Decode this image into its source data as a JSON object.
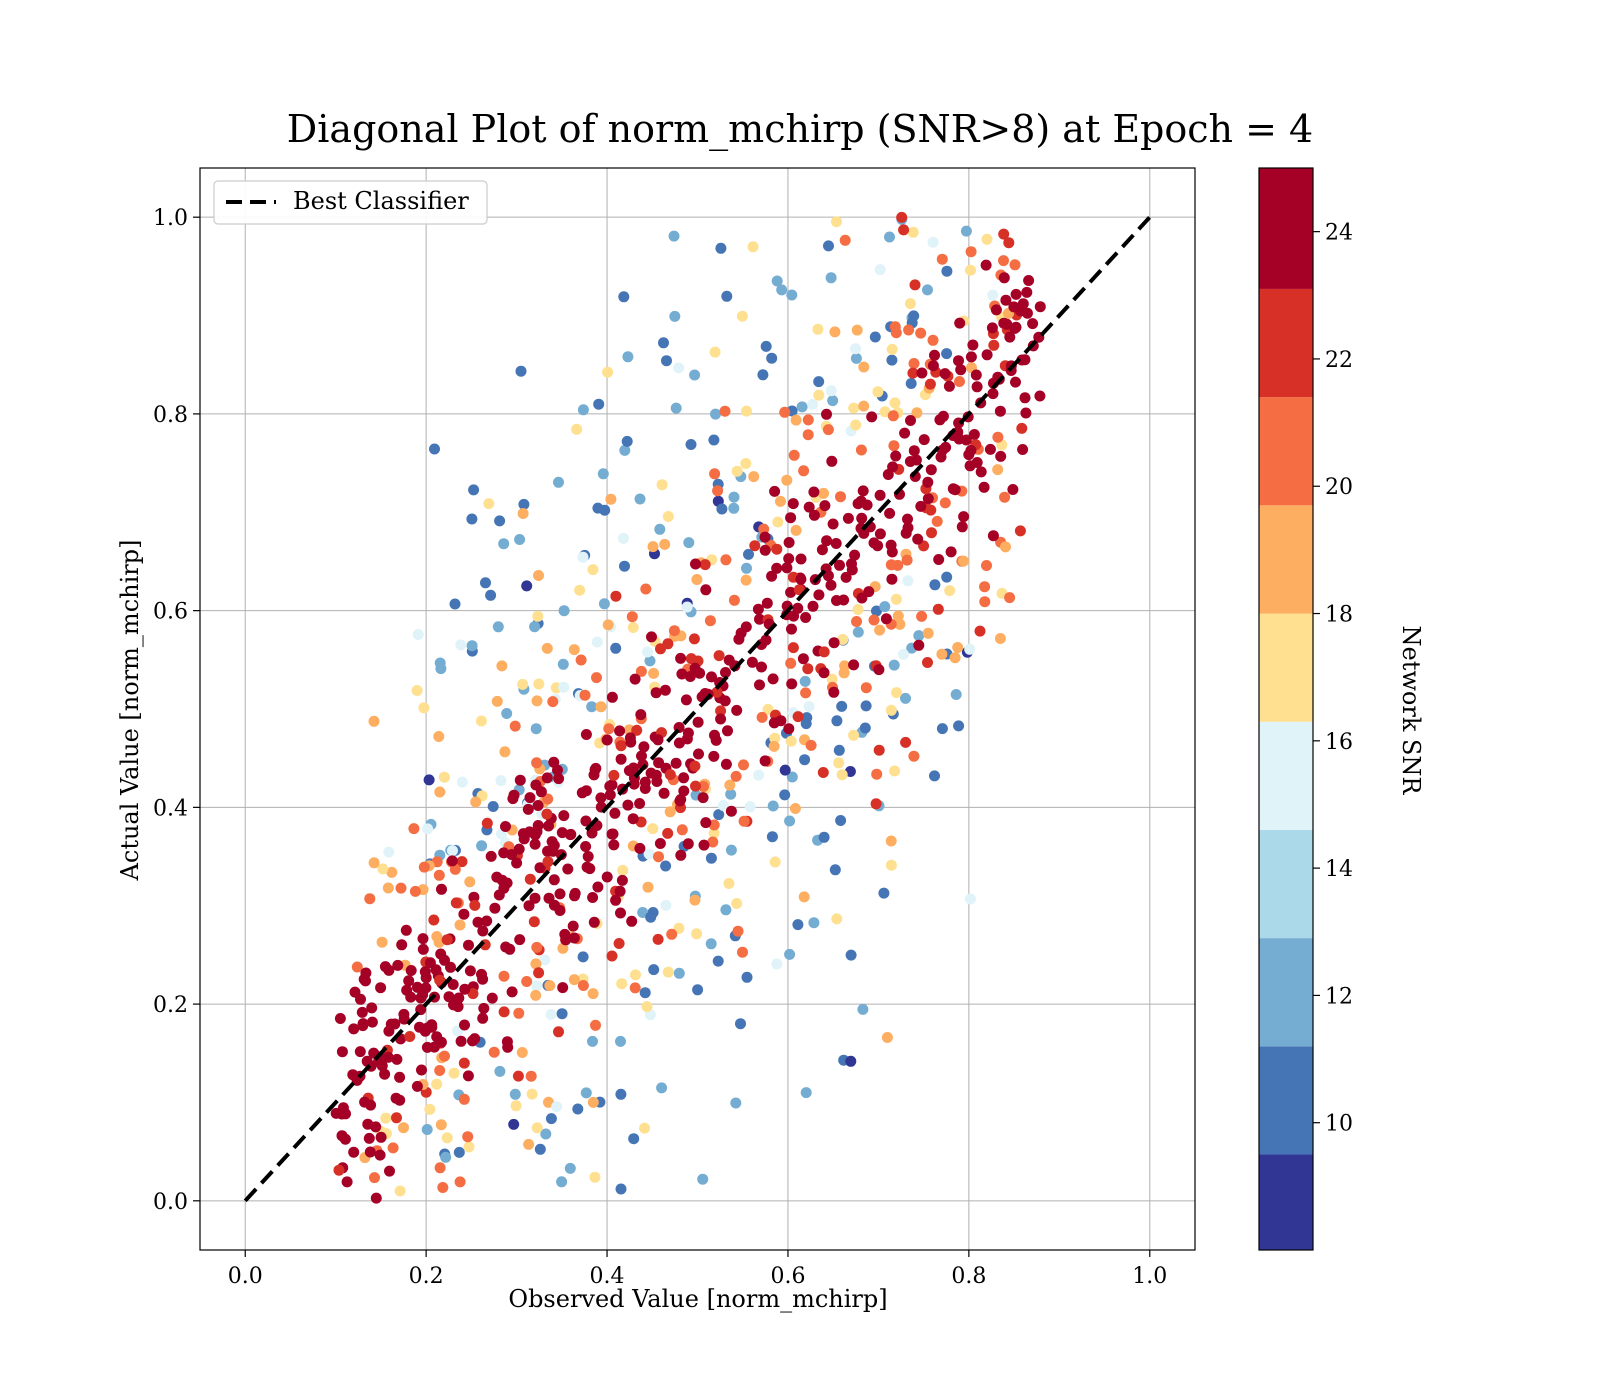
{
  "chart_data": {
    "type": "scatter",
    "title": "Diagonal Plot of norm_mchirp (SNR>8) at Epoch = 4",
    "xlabel": "Observed Value [norm_mchirp]",
    "ylabel": "Actual Value [norm_mchirp]",
    "xlim": [
      -0.05,
      1.05
    ],
    "ylim": [
      -0.05,
      1.05
    ],
    "xticks": [
      0.0,
      0.2,
      0.4,
      0.6,
      0.8,
      1.0
    ],
    "yticks": [
      0.0,
      0.2,
      0.4,
      0.6,
      0.8,
      1.0
    ],
    "xtick_labels": [
      "0.0",
      "0.2",
      "0.4",
      "0.6",
      "0.8",
      "1.0"
    ],
    "ytick_labels": [
      "0.0",
      "0.2",
      "0.4",
      "0.6",
      "0.8",
      "1.0"
    ],
    "grid": true,
    "legend": {
      "position": "top-left",
      "entries": [
        {
          "label": "Best Classifier",
          "style": "dashed",
          "color": "#000000"
        }
      ]
    },
    "reference_line": {
      "name": "Best Classifier",
      "x": [
        0.0,
        1.0
      ],
      "y": [
        0.0,
        1.0
      ]
    },
    "colorbar": {
      "label": "Network SNR",
      "range": [
        8,
        25
      ],
      "ticks": [
        10,
        12,
        14,
        16,
        18,
        20,
        22,
        24
      ],
      "tick_labels": [
        "10",
        "12",
        "14",
        "16",
        "18",
        "20",
        "22",
        "24"
      ],
      "bins": [
        {
          "from": 8,
          "to": 9.5,
          "color": "#313695"
        },
        {
          "from": 9.5,
          "to": 11.2,
          "color": "#4575b4"
        },
        {
          "from": 11.2,
          "to": 12.9,
          "color": "#74add1"
        },
        {
          "from": 12.9,
          "to": 14.6,
          "color": "#abd9e9"
        },
        {
          "from": 14.6,
          "to": 16.3,
          "color": "#e0f3f8"
        },
        {
          "from": 16.3,
          "to": 18.0,
          "color": "#fee090"
        },
        {
          "from": 18.0,
          "to": 19.7,
          "color": "#fdae61"
        },
        {
          "from": 19.7,
          "to": 21.4,
          "color": "#f46d43"
        },
        {
          "from": 21.4,
          "to": 23.1,
          "color": "#d73027"
        },
        {
          "from": 23.1,
          "to": 25,
          "color": "#a50026"
        }
      ]
    },
    "point_clusters": [
      {
        "description": "high SNR along diagonal",
        "snr": 24.5,
        "x_range": [
          0.1,
          0.88
        ],
        "spread": 0.06,
        "count": 520
      },
      {
        "description": "mid SNR band",
        "snr": 20.5,
        "x_range": [
          0.12,
          0.86
        ],
        "spread": 0.12,
        "count": 260
      },
      {
        "description": "moderate SNR band",
        "snr": 17,
        "x_range": [
          0.14,
          0.84
        ],
        "spread": 0.17,
        "count": 200
      },
      {
        "description": "low SNR outliers",
        "snr": 11,
        "x_range": [
          0.2,
          0.8
        ],
        "spread": 0.24,
        "count": 260
      }
    ]
  }
}
